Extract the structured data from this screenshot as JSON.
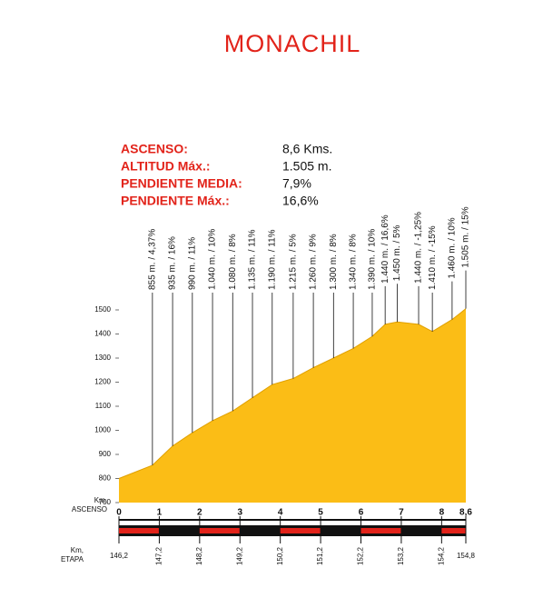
{
  "chart_data": {
    "type": "area",
    "title": "MONACHIL",
    "stats": [
      {
        "label": "ASCENSO:",
        "value": "8,6 Kms."
      },
      {
        "label": "ALTITUD Máx.:",
        "value": "1.505 m."
      },
      {
        "label": "PENDIENTE MEDIA:",
        "value": "7,9%"
      },
      {
        "label": "PENDIENTE Máx.:",
        "value": "16,6%"
      }
    ],
    "x": [
      0,
      0.83,
      1.33,
      1.82,
      2.32,
      2.82,
      3.31,
      3.8,
      4.32,
      4.82,
      5.32,
      5.81,
      6.28,
      6.6,
      6.9,
      7.43,
      7.77,
      8.26,
      8.6
    ],
    "values": [
      800,
      855,
      935,
      990,
      1040,
      1080,
      1135,
      1190,
      1215,
      1260,
      1300,
      1340,
      1390,
      1440,
      1450,
      1440,
      1410,
      1460,
      1505
    ],
    "point_labels": [
      null,
      "855 m. / 4,37%",
      "935 m. / 16%",
      "990 m. / 11%",
      "1.040 m. / 10%",
      "1.080 m. / 8%",
      "1.135 m. / 11%",
      "1.190 m. / 11%",
      "1.215 m. / 5%",
      "1.260 m. / 9%",
      "1.300 m. / 8%",
      "1.340 m. / 8%",
      "1.390 m. / 10%",
      "1.440 m. / 16,6%",
      "1.450 m. / 5%",
      "1.440 m. / -1,25%",
      "1.410 m. / -15%",
      "1.460 m. / 10%",
      "1.505 m. / 15%"
    ],
    "color": "#fbbd16",
    "xlim": [
      0,
      8.6
    ],
    "xticks": [
      0,
      1,
      2,
      3,
      4,
      5,
      6,
      7,
      8,
      {
        "value": 8.6,
        "label": "8,6"
      }
    ],
    "ylim": [
      700,
      1500
    ],
    "yticks": [
      700,
      800,
      900,
      1000,
      1100,
      1200,
      1300,
      1400,
      1500
    ],
    "x_label": [
      "Km,",
      "ASCENSO"
    ],
    "x2_label": [
      "Km,",
      "ETAPA"
    ],
    "x2_tick_labels": [
      "146,2",
      "147,2",
      "148,2",
      "149,2",
      "150,2",
      "151,2",
      "152,2",
      "153,2",
      "154,2",
      "154,8"
    ]
  }
}
